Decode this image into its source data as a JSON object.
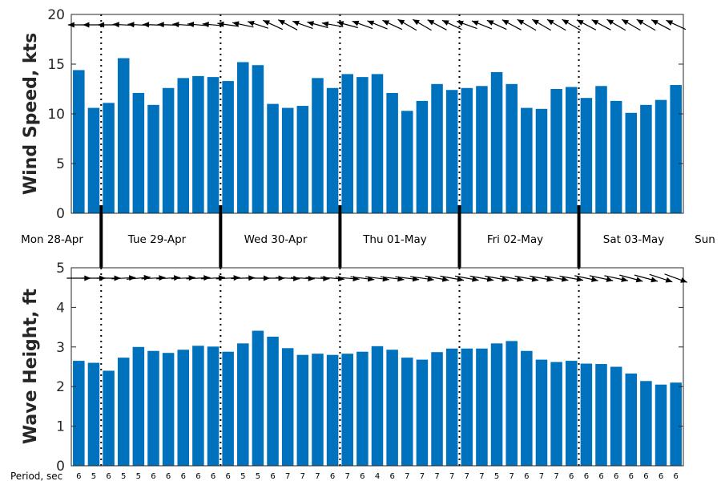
{
  "colors": {
    "bar": "#0072bd",
    "arrow": "#000000",
    "axis": "#262626"
  },
  "period_label": "Period, sec",
  "day_labels": [
    "Mon 28-Apr",
    "Tue 29-Apr",
    "Wed 30-Apr",
    "Thu 01-May",
    "Fri 02-May",
    "Sat 03-May",
    "Sun"
  ],
  "chart_data": [
    {
      "type": "bar",
      "ylabel": "Wind Speed, kts",
      "ylim": [
        0,
        20
      ],
      "yticks": [
        0,
        5,
        10,
        15,
        20
      ],
      "values": [
        14.4,
        10.6,
        11.1,
        15.6,
        12.1,
        10.9,
        12.6,
        13.6,
        13.8,
        13.7,
        13.3,
        15.2,
        14.9,
        11.0,
        10.6,
        10.8,
        13.6,
        12.6,
        14.0,
        13.7,
        14.0,
        12.1,
        10.3,
        11.3,
        13.0,
        12.4,
        12.6,
        12.8,
        14.2,
        13.0,
        10.6,
        10.5,
        12.5,
        12.7,
        11.6,
        12.8,
        11.3,
        10.1,
        10.9,
        11.4,
        12.9
      ],
      "direction_arrows_deg": [
        180,
        180,
        180,
        177,
        177,
        178,
        178,
        176,
        175,
        175,
        172,
        168,
        162,
        155,
        152,
        160,
        165,
        170,
        165,
        160,
        158,
        155,
        150,
        150,
        152,
        155,
        160,
        158,
        155,
        152,
        150,
        150,
        150,
        150,
        152,
        152,
        150,
        150,
        150,
        152,
        155
      ],
      "grid": false
    },
    {
      "type": "bar",
      "ylabel": "Wave Height, ft",
      "ylim": [
        0,
        5
      ],
      "yticks": [
        0,
        1,
        2,
        3,
        4,
        5
      ],
      "values": [
        2.65,
        2.6,
        2.4,
        2.73,
        3.0,
        2.9,
        2.85,
        2.93,
        3.03,
        3.01,
        2.88,
        3.09,
        3.41,
        3.26,
        2.97,
        2.8,
        2.83,
        2.8,
        2.83,
        2.88,
        3.02,
        2.93,
        2.73,
        2.68,
        2.87,
        2.96,
        2.96,
        2.96,
        3.09,
        3.15,
        2.9,
        2.68,
        2.62,
        2.65,
        2.58,
        2.57,
        2.5,
        2.33,
        2.14,
        2.05,
        2.1
      ],
      "direction_arrows_deg": [
        0,
        0,
        0,
        3,
        5,
        3,
        3,
        3,
        3,
        3,
        3,
        2,
        0,
        0,
        -3,
        -3,
        -3,
        -5,
        -5,
        -7,
        -7,
        -7,
        -7,
        -8,
        -10,
        -10,
        -10,
        -10,
        -10,
        -10,
        -10,
        -10,
        -10,
        -10,
        -12,
        -12,
        -12,
        -15,
        -15,
        -18,
        -20
      ],
      "period_sec": [
        6,
        5,
        6,
        5,
        5,
        6,
        6,
        6,
        6,
        6,
        6,
        5,
        5,
        6,
        7,
        7,
        7,
        6,
        7,
        6,
        4,
        6,
        7,
        7,
        7,
        7,
        7,
        7,
        5,
        7,
        6,
        7,
        7,
        6,
        6,
        6,
        6,
        6,
        6,
        6,
        6
      ],
      "grid": false
    }
  ]
}
